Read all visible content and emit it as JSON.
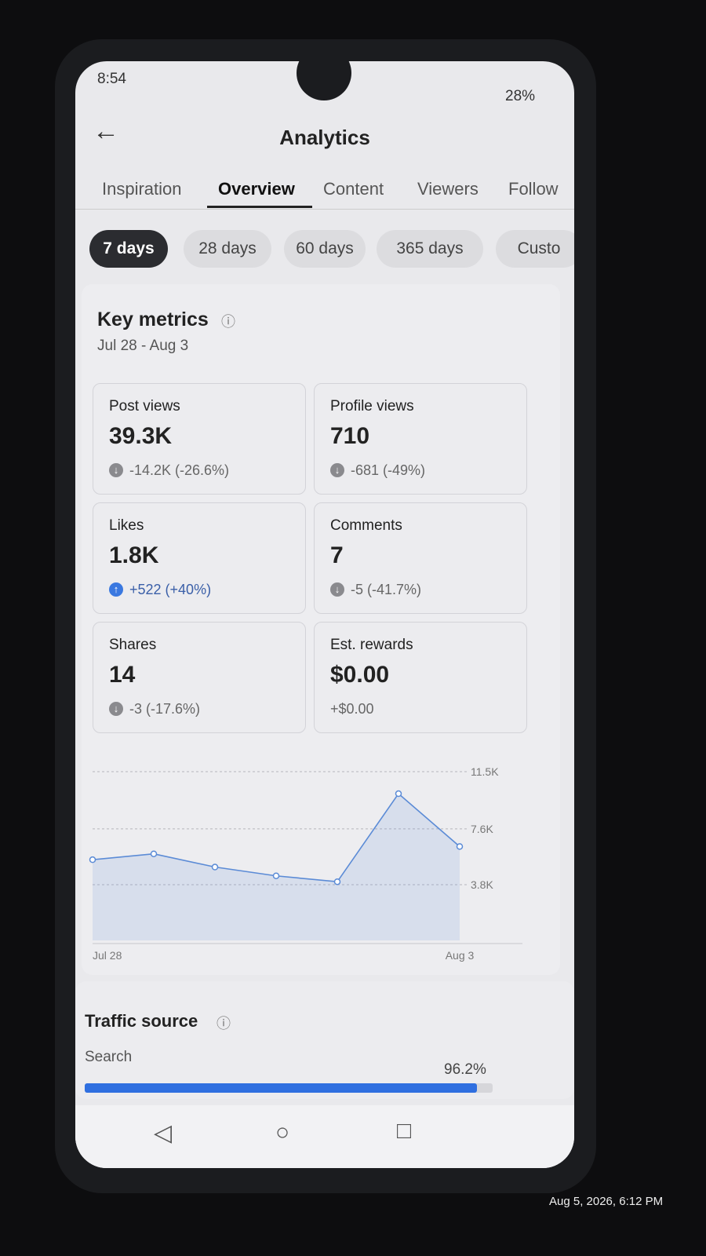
{
  "status_bar": {
    "time": "8:54",
    "battery": "28%"
  },
  "header": {
    "title": "Analytics"
  },
  "tabs": {
    "items": [
      "Inspiration",
      "Overview",
      "Content",
      "Viewers",
      "Follow"
    ],
    "active": 1
  },
  "ranges": {
    "items": [
      "7 days",
      "28 days",
      "60 days",
      "365 days",
      "Custo"
    ],
    "active": 0
  },
  "key_metrics": {
    "title": "Key metrics",
    "date_range": "Jul 28 - Aug 3",
    "cards": [
      {
        "label": "Post views",
        "value": "39.3K",
        "change": "-14.2K (-26.6%)",
        "trend": "down"
      },
      {
        "label": "Profile views",
        "value": "710",
        "change": "-681 (-49%)",
        "trend": "down"
      },
      {
        "label": "Likes",
        "value": "1.8K",
        "change": "+522 (+40%)",
        "trend": "up"
      },
      {
        "label": "Comments",
        "value": "7",
        "change": "-5 (-41.7%)",
        "trend": "down"
      },
      {
        "label": "Shares",
        "value": "14",
        "change": "-3 (-17.6%)",
        "trend": "down"
      },
      {
        "label": "Est. rewards",
        "value": "$0.00",
        "change": "+$0.00",
        "trend": null
      }
    ]
  },
  "chart": {
    "type": "line",
    "categories": [
      "Jul 28",
      null,
      null,
      null,
      null,
      null,
      "Aug 3"
    ],
    "values": [
      5500,
      5900,
      5000,
      4400,
      4000,
      10000,
      6400
    ],
    "ylim": [
      0,
      11500
    ],
    "yticks": [
      {
        "value": 3800,
        "label": "3.8K"
      },
      {
        "value": 7600,
        "label": "7.6K"
      },
      {
        "value": 11500,
        "label": "11.5K"
      }
    ],
    "color": "#5b8bd6",
    "grid": true
  },
  "traffic_source": {
    "title": "Traffic source",
    "categories": [
      "Search"
    ],
    "values": [
      96.2
    ],
    "value_labels": [
      "96.2%"
    ],
    "xlim": [
      0,
      100
    ],
    "color": "#2f6fe0"
  },
  "photo_timestamp": "Aug 5, 2026, 6:12 PM"
}
